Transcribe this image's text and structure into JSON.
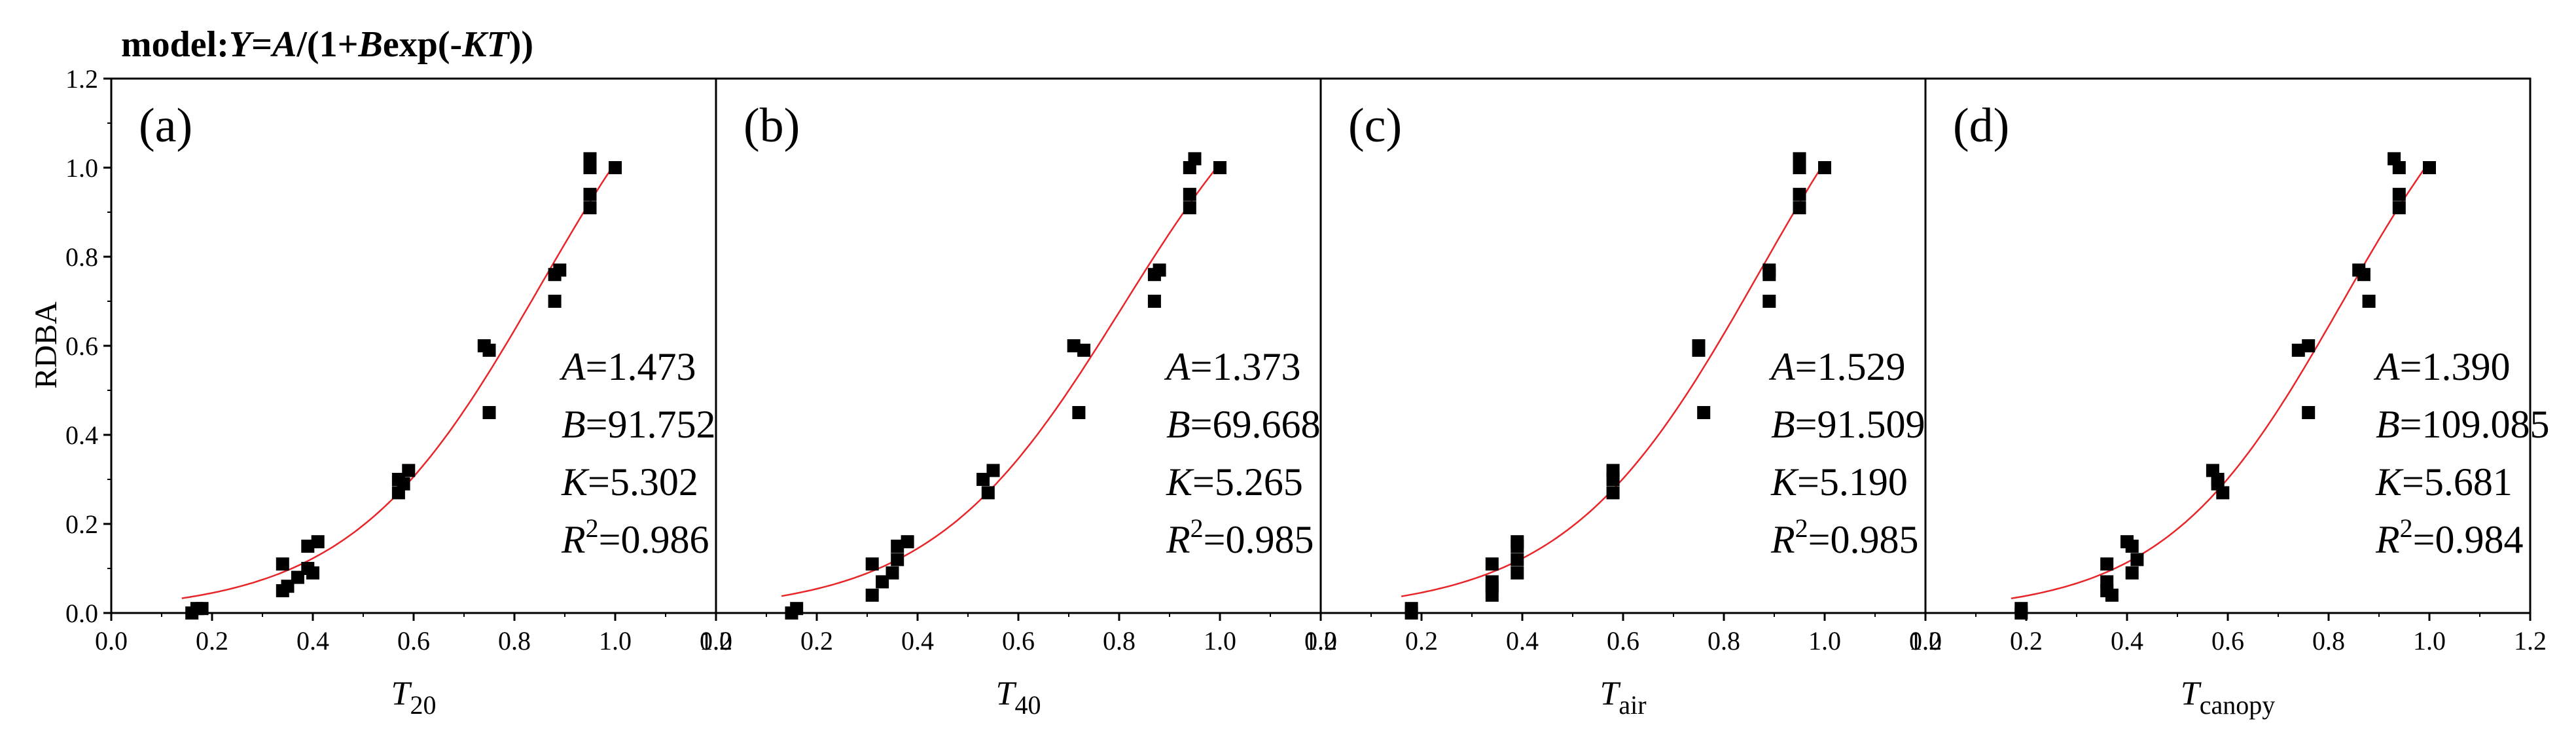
{
  "figure": {
    "title_prefix": "model:",
    "title_formula": [
      "Y",
      "=",
      "A",
      "/(1+",
      "B",
      "exp(-",
      "KT",
      "))"
    ],
    "ylabel": "RDBA"
  },
  "colors": {
    "axis": "#000000",
    "marker": "#000000",
    "fit_curve": "#e8262a"
  },
  "chart_data": [
    {
      "type": "scatter",
      "panel_label": "(a)",
      "xlabel_main": "T",
      "xlabel_sub": "20",
      "xlim": [
        0.0,
        1.2
      ],
      "ylim": [
        0.0,
        1.2
      ],
      "xticks": [
        "0.0",
        "0.2",
        "0.4",
        "0.6",
        "0.8",
        "1.0",
        "1.2"
      ],
      "yticks": [
        "0.0",
        "0.2",
        "0.4",
        "0.6",
        "0.8",
        "1.0",
        "1.2"
      ],
      "params": {
        "A": "1.473",
        "B": "91.752",
        "K": "5.302",
        "R2": "0.986"
      },
      "fit": {
        "A": 1.473,
        "B": 91.752,
        "K": 5.302
      },
      "points": [
        [
          0.16,
          0.0
        ],
        [
          0.17,
          0.01
        ],
        [
          0.18,
          0.01
        ],
        [
          0.34,
          0.05
        ],
        [
          0.34,
          0.11
        ],
        [
          0.35,
          0.06
        ],
        [
          0.37,
          0.08
        ],
        [
          0.39,
          0.1
        ],
        [
          0.39,
          0.15
        ],
        [
          0.4,
          0.09
        ],
        [
          0.41,
          0.16
        ],
        [
          0.57,
          0.3
        ],
        [
          0.57,
          0.27
        ],
        [
          0.58,
          0.29
        ],
        [
          0.59,
          0.32
        ],
        [
          0.74,
          0.6
        ],
        [
          0.75,
          0.59
        ],
        [
          0.75,
          0.45
        ],
        [
          0.88,
          0.76
        ],
        [
          0.89,
          0.77
        ],
        [
          0.88,
          0.7
        ],
        [
          0.95,
          1.0
        ],
        [
          0.95,
          1.02
        ],
        [
          0.95,
          0.91
        ],
        [
          0.95,
          0.94
        ],
        [
          1.0,
          1.0
        ]
      ]
    },
    {
      "type": "scatter",
      "panel_label": "(b)",
      "xlabel_main": "T",
      "xlabel_sub": "40",
      "xlim": [
        0.0,
        1.2
      ],
      "ylim": [
        0.0,
        1.2
      ],
      "xticks": [
        "0.0",
        "0.2",
        "0.4",
        "0.6",
        "0.8",
        "1.0",
        "1.2"
      ],
      "yticks": [
        "0.0",
        "0.2",
        "0.4",
        "0.6",
        "0.8",
        "1.0",
        "1.2"
      ],
      "params": {
        "A": "1.373",
        "B": "69.668",
        "K": "5.265",
        "R2": "0.985"
      },
      "fit": {
        "A": 1.373,
        "B": 69.668,
        "K": 5.265
      },
      "points": [
        [
          0.15,
          0.0
        ],
        [
          0.16,
          0.01
        ],
        [
          0.31,
          0.04
        ],
        [
          0.31,
          0.11
        ],
        [
          0.33,
          0.07
        ],
        [
          0.35,
          0.09
        ],
        [
          0.36,
          0.15
        ],
        [
          0.36,
          0.12
        ],
        [
          0.38,
          0.16
        ],
        [
          0.53,
          0.3
        ],
        [
          0.54,
          0.27
        ],
        [
          0.55,
          0.32
        ],
        [
          0.71,
          0.6
        ],
        [
          0.73,
          0.59
        ],
        [
          0.72,
          0.45
        ],
        [
          0.87,
          0.76
        ],
        [
          0.88,
          0.77
        ],
        [
          0.87,
          0.7
        ],
        [
          0.94,
          1.0
        ],
        [
          0.95,
          1.02
        ],
        [
          0.94,
          0.91
        ],
        [
          0.94,
          0.94
        ],
        [
          1.0,
          1.0
        ]
      ]
    },
    {
      "type": "scatter",
      "panel_label": "(c)",
      "xlabel_main": "T",
      "xlabel_sub": "air",
      "xlim": [
        0.0,
        1.2
      ],
      "ylim": [
        0.0,
        1.2
      ],
      "xticks": [
        "0.0",
        "0.2",
        "0.4",
        "0.6",
        "0.8",
        "1.0",
        "1.2"
      ],
      "yticks": [
        "0.0",
        "0.2",
        "0.4",
        "0.6",
        "0.8",
        "1.0",
        "1.2"
      ],
      "params": {
        "A": "1.529",
        "B": "91.509",
        "K": "5.190",
        "R2": "0.985"
      },
      "fit": {
        "A": 1.529,
        "B": 91.509,
        "K": 5.19
      },
      "points": [
        [
          0.18,
          0.0
        ],
        [
          0.18,
          0.01
        ],
        [
          0.34,
          0.04
        ],
        [
          0.34,
          0.06
        ],
        [
          0.34,
          0.11
        ],
        [
          0.34,
          0.07
        ],
        [
          0.39,
          0.09
        ],
        [
          0.39,
          0.12
        ],
        [
          0.39,
          0.15
        ],
        [
          0.39,
          0.16
        ],
        [
          0.58,
          0.27
        ],
        [
          0.58,
          0.3
        ],
        [
          0.58,
          0.32
        ],
        [
          0.75,
          0.6
        ],
        [
          0.75,
          0.59
        ],
        [
          0.76,
          0.45
        ],
        [
          0.89,
          0.76
        ],
        [
          0.89,
          0.77
        ],
        [
          0.89,
          0.7
        ],
        [
          0.95,
          1.0
        ],
        [
          0.95,
          1.02
        ],
        [
          0.95,
          0.91
        ],
        [
          0.95,
          0.94
        ],
        [
          1.0,
          1.0
        ]
      ]
    },
    {
      "type": "scatter",
      "panel_label": "(d)",
      "xlabel_main": "T",
      "xlabel_sub": "canopy",
      "xlim": [
        0.0,
        1.2
      ],
      "ylim": [
        0.0,
        1.2
      ],
      "xticks": [
        "0.0",
        "0.2",
        "0.4",
        "0.6",
        "0.8",
        "1.0",
        "1.2"
      ],
      "yticks": [
        "0.0",
        "0.2",
        "0.4",
        "0.6",
        "0.8",
        "1.0",
        "1.2"
      ],
      "params": {
        "A": "1.390",
        "B": "109.085",
        "K": "5.681",
        "R2": "0.984"
      },
      "fit": {
        "A": 1.39,
        "B": 109.085,
        "K": 5.681
      },
      "points": [
        [
          0.19,
          0.0
        ],
        [
          0.19,
          0.01
        ],
        [
          0.36,
          0.05
        ],
        [
          0.36,
          0.07
        ],
        [
          0.37,
          0.04
        ],
        [
          0.36,
          0.11
        ],
        [
          0.4,
          0.16
        ],
        [
          0.41,
          0.15
        ],
        [
          0.41,
          0.09
        ],
        [
          0.42,
          0.12
        ],
        [
          0.57,
          0.32
        ],
        [
          0.58,
          0.29
        ],
        [
          0.59,
          0.27
        ],
        [
          0.58,
          0.3
        ],
        [
          0.74,
          0.59
        ],
        [
          0.76,
          0.6
        ],
        [
          0.76,
          0.45
        ],
        [
          0.86,
          0.77
        ],
        [
          0.87,
          0.76
        ],
        [
          0.88,
          0.7
        ],
        [
          0.93,
          1.02
        ],
        [
          0.94,
          1.0
        ],
        [
          0.94,
          0.91
        ],
        [
          0.94,
          0.94
        ],
        [
          1.0,
          1.0
        ]
      ]
    }
  ]
}
